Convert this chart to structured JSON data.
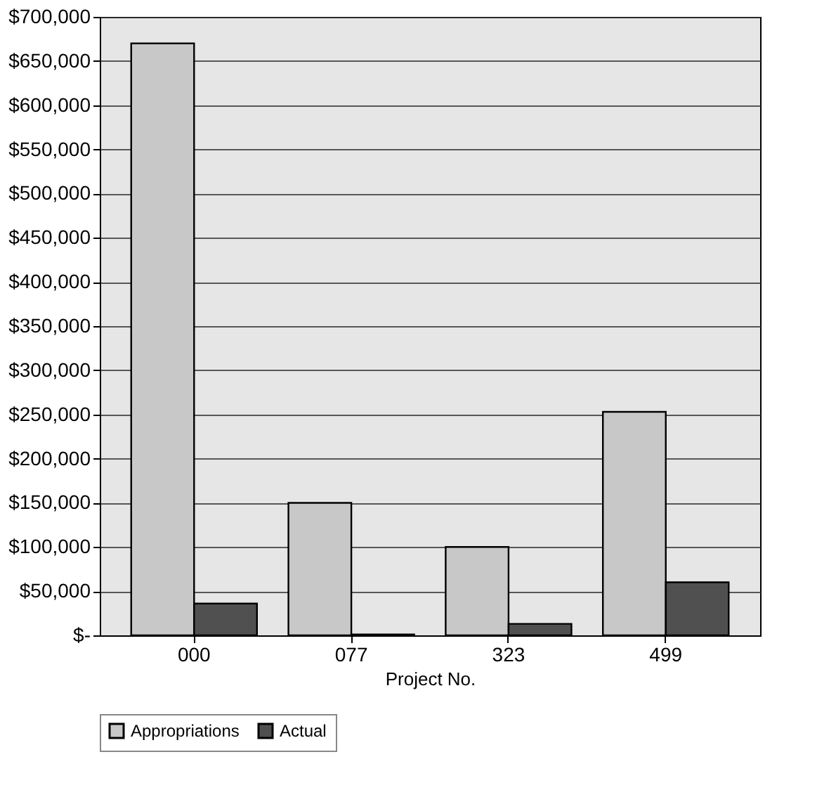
{
  "chart_data": {
    "type": "bar",
    "xlabel": "Project No.",
    "categories": [
      "000",
      "077",
      "323",
      "499"
    ],
    "series": [
      {
        "name": "Appropriations",
        "color": "#c8c8c8",
        "values": [
          670000,
          150000,
          100000,
          253000
        ]
      },
      {
        "name": "Actual",
        "color": "#505050",
        "values": [
          36000,
          1000,
          13000,
          60000
        ]
      }
    ],
    "ylim": [
      0,
      700000
    ],
    "yticks": [
      {
        "value": 0,
        "label": "$-"
      },
      {
        "value": 50000,
        "label": "$50,000"
      },
      {
        "value": 100000,
        "label": "$100,000"
      },
      {
        "value": 150000,
        "label": "$150,000"
      },
      {
        "value": 200000,
        "label": "$200,000"
      },
      {
        "value": 250000,
        "label": "$250,000"
      },
      {
        "value": 300000,
        "label": "$300,000"
      },
      {
        "value": 350000,
        "label": "$350,000"
      },
      {
        "value": 400000,
        "label": "$400,000"
      },
      {
        "value": 450000,
        "label": "$450,000"
      },
      {
        "value": 500000,
        "label": "$500,000"
      },
      {
        "value": 550000,
        "label": "$550,000"
      },
      {
        "value": 600000,
        "label": "$600,000"
      },
      {
        "value": 650000,
        "label": "$650,000"
      },
      {
        "value": 700000,
        "label": "$700,000"
      }
    ],
    "grid": "y",
    "legend": "bottom"
  }
}
